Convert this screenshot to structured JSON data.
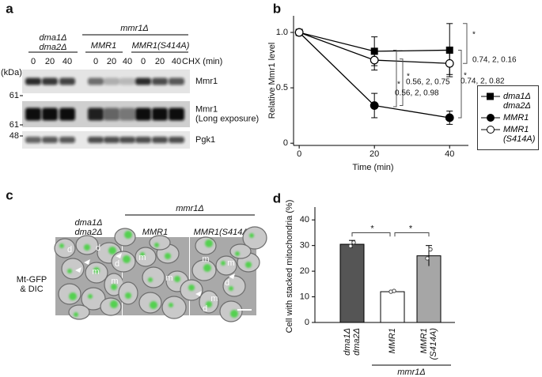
{
  "panel_a": {
    "label": "a",
    "strain_wt": [
      "dma1Δ",
      "dma2Δ"
    ],
    "group": "mmr1Δ",
    "strains": [
      "MMR1",
      "MMR1(S414A)"
    ],
    "time_points": [
      0,
      20,
      40,
      0,
      20,
      40,
      0,
      20,
      40
    ],
    "time_unit": "CHX (min)",
    "kda_unit": "(kDa)",
    "markers": [
      "61",
      "61",
      "48"
    ],
    "blots": [
      [
        "Mmr1"
      ],
      [
        "Mmr1",
        "(Long exposure)"
      ],
      [
        "Pgk1"
      ]
    ]
  },
  "panel_c": {
    "label": "c",
    "strain_wt": [
      "dma1Δ",
      "dma2Δ"
    ],
    "group": "mmr1Δ",
    "strains": [
      "MMR1",
      "MMR1(S414A)"
    ],
    "channel": [
      "Mt-GFP",
      "& DIC"
    ],
    "cell_labels": [
      "d",
      "d",
      "m",
      "m",
      "d",
      "m",
      "m",
      "m",
      "m",
      "d",
      "m",
      "d"
    ]
  },
  "chart_data": [
    {
      "type": "line",
      "label": "b",
      "x": [
        0,
        20,
        40
      ],
      "xlim": [
        -1.5,
        45
      ],
      "xticks": [
        0,
        20,
        40
      ],
      "ylim": [
        -0.02,
        1.15
      ],
      "yticks": [
        0,
        0.5,
        {
          "value": 1,
          "label": "1.0"
        }
      ],
      "xlabel": "Time (min)",
      "ylabel": "Relative Mmr1 level",
      "legend": "right",
      "series": [
        {
          "name": "dma1Δ dma2Δ",
          "color": "#000000",
          "marker": "square",
          "values": [
            1,
            0.83,
            0.84
          ],
          "errors": [
            0,
            0.13,
            0.24
          ]
        },
        {
          "name": "MMR1",
          "color": "#000000",
          "marker": "circle",
          "values": [
            1,
            0.34,
            0.23
          ],
          "errors": [
            0,
            0.11,
            0.06
          ]
        },
        {
          "name": "MMR1 (S414A)",
          "color": "#000000",
          "marker": "open-circle",
          "values": [
            1,
            0.75,
            0.72
          ],
          "errors": [
            0,
            0.09,
            0.1
          ]
        }
      ],
      "annotations": [
        "*",
        "0.56, 2, 0.75",
        "*",
        "0.56, 2, 0.98",
        "*",
        "0.74, 2, 0.16",
        "*",
        "0.74, 2, 0.82"
      ]
    },
    {
      "type": "bar",
      "label": "d",
      "categories": [
        [
          "dma1Δ",
          "dma2Δ"
        ],
        [
          "MMR1"
        ],
        [
          "MMR1",
          "(S414A)"
        ]
      ],
      "group_label": "mmr1Δ",
      "values": [
        30.5,
        12,
        26
      ],
      "errors": [
        1.5,
        0.5,
        4
      ],
      "points": [
        [
          29.8,
          31.2
        ],
        [
          12,
          12.3
        ],
        [
          25,
          28.5
        ]
      ],
      "colors": [
        "#555555",
        "#ffffff",
        "#a6a6a6"
      ],
      "ylim": [
        0,
        45
      ],
      "yticks": [
        0,
        10,
        20,
        30,
        40
      ],
      "ylabel": "Cell with stacked mitochondria (%)",
      "annotations": [
        "*",
        "*"
      ]
    }
  ]
}
